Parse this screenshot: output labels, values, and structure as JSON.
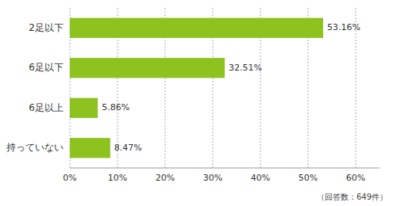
{
  "chart_data": {
    "type": "bar",
    "orientation": "horizontal",
    "categories": [
      "2足以下",
      "6足以下",
      "6足以上",
      "持っていない"
    ],
    "values": [
      53.16,
      32.51,
      5.86,
      8.47
    ],
    "value_labels": [
      "53.16%",
      "32.51%",
      "5.86%",
      "8.47%"
    ],
    "data_labels": true,
    "color": "#8dc21f",
    "xlim": [
      0,
      65
    ],
    "xticks": [
      {
        "value": 0,
        "label": "0%"
      },
      {
        "value": 10,
        "label": "10%"
      },
      {
        "value": 20,
        "label": "20%"
      },
      {
        "value": 30,
        "label": "30%"
      },
      {
        "value": 40,
        "label": "40%"
      },
      {
        "value": 50,
        "label": "50%"
      },
      {
        "value": 60,
        "label": "60%"
      }
    ],
    "grid": true,
    "annotations": [
      "（回答数：649件）"
    ]
  }
}
